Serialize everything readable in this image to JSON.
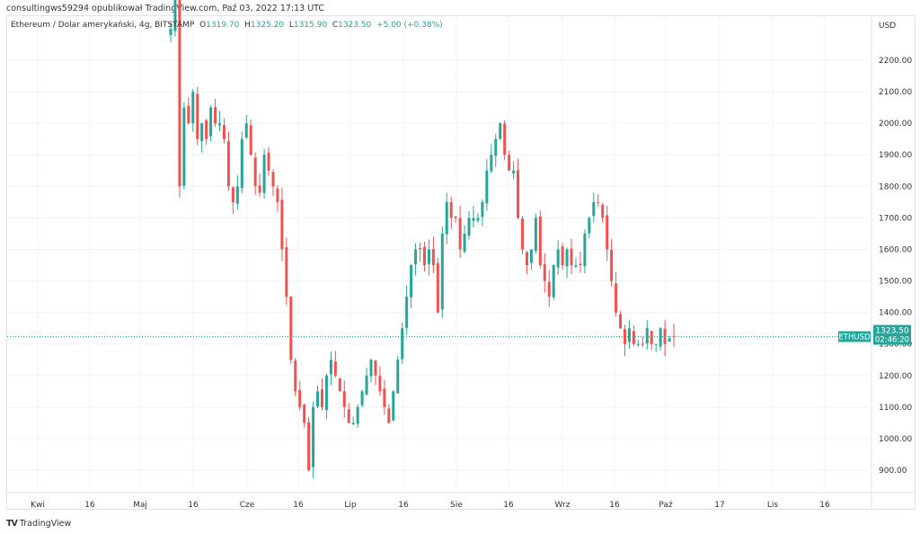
{
  "header": {
    "published": "consultingws59294 opublikował TradingView.com, Paź 03, 2022 17:13 UTC"
  },
  "legend": {
    "symbol": "Ethereum / Dolar amerykański, 4g, BITSTAMP",
    "o_label": "O",
    "o": "1319.70",
    "h_label": "H",
    "h": "1325.20",
    "l_label": "L",
    "l": "1315.90",
    "c_label": "C",
    "c": "1323.50",
    "change": "+5.00 (+0.38%)"
  },
  "footer": {
    "logo": "TradingView"
  },
  "colors": {
    "up": "#26a69a",
    "down": "#ef5350",
    "grid": "#f0f3fa",
    "last": "#26a69a"
  },
  "chart_data": {
    "type": "candlestick",
    "symbol": "ETHUSD",
    "currency_label": "USD",
    "last_price": "1323.50",
    "countdown": "02:46:20",
    "last_value": 1323.5,
    "ylim": [
      820,
      2340
    ],
    "y_ticks": [
      900,
      1000,
      1100,
      1200,
      1300,
      1400,
      1500,
      1600,
      1700,
      1800,
      1900,
      2000,
      2100,
      2200
    ],
    "y_tick_labels": [
      "900.00",
      "1000.00",
      "1100.00",
      "1200.00",
      "1300.00",
      "1400.00",
      "1500.00",
      "1600.00",
      "1700.00",
      "1800.00",
      "1900.00",
      "2000.00",
      "2100.00",
      "2200.00"
    ],
    "x_tick_labels": [
      "Kwi",
      "16",
      "Maj",
      "16",
      "Cze",
      "16",
      "Lip",
      "16",
      "Sie",
      "16",
      "Wrz",
      "16",
      "Paź",
      "17",
      "Lis",
      "16"
    ],
    "closes": [
      2300,
      2400,
      1800,
      2050,
      2000,
      2100,
      1950,
      2000,
      1950,
      2050,
      2000,
      2000,
      1950,
      1800,
      1750,
      1800,
      1950,
      2000,
      1900,
      1800,
      1780,
      1900,
      1850,
      1800,
      1750,
      1600,
      1450,
      1250,
      1150,
      1100,
      1050,
      900,
      1100,
      1150,
      1100,
      1200,
      1250,
      1200,
      1150,
      1100,
      1050,
      1050,
      1100,
      1150,
      1200,
      1250,
      1200,
      1150,
      1100,
      1050,
      1150,
      1250,
      1350,
      1450,
      1550,
      1600,
      1600,
      1550,
      1600,
      1550,
      1400,
      1650,
      1750,
      1700,
      1700,
      1600,
      1650,
      1700,
      1700,
      1700,
      1750,
      1850,
      1900,
      1950,
      2000,
      1900,
      1850,
      1850,
      1700,
      1600,
      1550,
      1600,
      1700,
      1550,
      1500,
      1450,
      1550,
      1600,
      1550,
      1600,
      1550,
      1550,
      1550,
      1650,
      1700,
      1750,
      1750,
      1700,
      1600,
      1500,
      1400,
      1350,
      1300,
      1350,
      1300,
      1300,
      1300,
      1350,
      1300,
      1300,
      1350,
      1300,
      1318.5,
      1323.5
    ]
  }
}
